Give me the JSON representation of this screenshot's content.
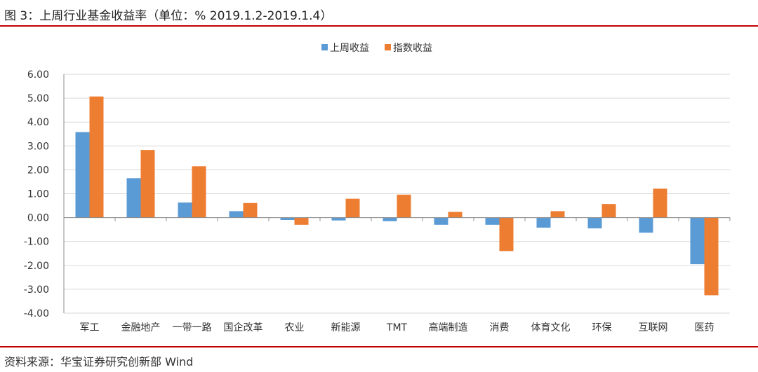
{
  "header": {
    "title": "图 3：上周行业基金收益率（单位：% 2019.1.2-2019.1.4）",
    "rule_color": "#c00000"
  },
  "footer": {
    "source": "资料来源：华宝证券研究创新部 Wind"
  },
  "chart_data": {
    "type": "bar",
    "categories": [
      "军工",
      "金融地产",
      "一带一路",
      "国企改革",
      "农业",
      "新能源",
      "TMT",
      "高端制造",
      "消费",
      "体育文化",
      "环保",
      "互联网",
      "医药"
    ],
    "series": [
      {
        "name": "上周收益",
        "color": "#5b9bd5",
        "values": [
          3.58,
          1.65,
          0.63,
          0.27,
          -0.1,
          -0.12,
          -0.15,
          -0.3,
          -0.3,
          -0.42,
          -0.45,
          -0.63,
          -1.95
        ]
      },
      {
        "name": "指数收益",
        "color": "#ed7d31",
        "values": [
          5.07,
          2.83,
          2.15,
          0.61,
          -0.3,
          0.79,
          0.96,
          0.24,
          -1.4,
          0.27,
          0.57,
          1.21,
          -3.25
        ]
      }
    ],
    "ylim": [
      -4,
      6
    ],
    "yticks": [
      6,
      5,
      4,
      3,
      2,
      1,
      0,
      -1,
      -2,
      -3,
      -4
    ],
    "ytick_labels": [
      "6.00",
      "5.00",
      "4.00",
      "3.00",
      "2.00",
      "1.00",
      "0.00",
      "-1.00",
      "-2.00",
      "-3.00",
      "-4.00"
    ],
    "grid": true,
    "legend": "top-center",
    "xlabel": "",
    "ylabel": ""
  }
}
